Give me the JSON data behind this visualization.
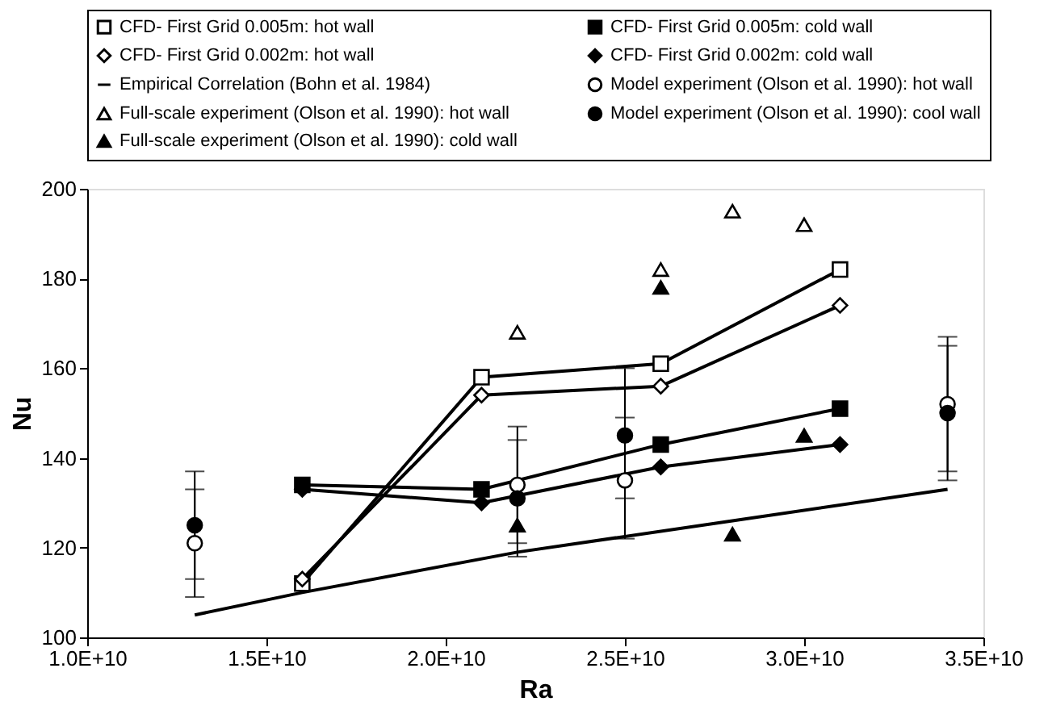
{
  "chart_data": {
    "type": "line",
    "xlabel": "Ra",
    "ylabel": "Nu",
    "xlim": [
      10000000000.0,
      35000000000.0
    ],
    "ylim": [
      100,
      200
    ],
    "xticks": [
      {
        "value": 10000000000.0,
        "label": "1.0E+10"
      },
      {
        "value": 15000000000.0,
        "label": "1.5E+10"
      },
      {
        "value": 20000000000.0,
        "label": "2.0E+10"
      },
      {
        "value": 25000000000.0,
        "label": "2.5E+10"
      },
      {
        "value": 30000000000.0,
        "label": "3.0E+10"
      },
      {
        "value": 35000000000.0,
        "label": "3.5E+10"
      }
    ],
    "yticks": [
      100,
      120,
      140,
      160,
      180,
      200
    ],
    "grid": false,
    "legend": "top",
    "series": [
      {
        "name": "CFD- First Grid 0.005m: hot wall",
        "marker": "square",
        "line_style": "solid",
        "color": "#ffffff",
        "x": [
          16000000000.0,
          21000000000.0,
          26000000000.0,
          31000000000.0
        ],
        "values": [
          112,
          158,
          161,
          182
        ]
      },
      {
        "name": "CFD- First Grid 0.005m: cold wall",
        "marker": "square",
        "line_style": "solid",
        "color": "#000000",
        "x": [
          16000000000.0,
          21000000000.0,
          26000000000.0,
          31000000000.0
        ],
        "values": [
          134,
          133,
          143,
          151
        ]
      },
      {
        "name": "CFD- First Grid 0.002m: hot wall",
        "marker": "diamond",
        "line_style": "solid",
        "color": "#ffffff",
        "x": [
          16000000000.0,
          21000000000.0,
          26000000000.0,
          31000000000.0
        ],
        "values": [
          113,
          154,
          156,
          174
        ]
      },
      {
        "name": "CFD- First Grid 0.002m: cold wall",
        "marker": "diamond",
        "line_style": "solid",
        "color": "#000000",
        "x": [
          16000000000.0,
          21000000000.0,
          26000000000.0,
          31000000000.0
        ],
        "values": [
          133,
          130,
          138,
          143
        ]
      },
      {
        "name": "Empirical Correlation (Bohn et al. 1984)",
        "marker": "none",
        "line_style": "solid",
        "color": "#000000",
        "x": [
          13000000000.0,
          16000000000.0,
          22000000000.0,
          28000000000.0,
          34000000000.0
        ],
        "values": [
          105,
          110,
          119,
          126,
          133
        ]
      },
      {
        "name": "Model experiment (Olson et al. 1990): hot wall",
        "type": "scatter",
        "marker": "circle",
        "color": "#ffffff",
        "x": [
          13000000000.0,
          22000000000.0,
          25000000000.0,
          34000000000.0
        ],
        "values": [
          121,
          134,
          135,
          152
        ],
        "errors": [
          [
            113,
            133
          ],
          [
            121,
            147
          ],
          [
            122,
            160
          ],
          [
            137,
            167
          ]
        ]
      },
      {
        "name": "Full-scale experiment (Olson et al. 1990): hot wall",
        "type": "scatter",
        "marker": "triangle",
        "color": "#ffffff",
        "x": [
          22000000000.0,
          26000000000.0,
          28000000000.0,
          30000000000.0
        ],
        "values": [
          168,
          182,
          195,
          192
        ]
      },
      {
        "name": "Model experiment (Olson et al. 1990): cool wall",
        "type": "scatter",
        "marker": "circle",
        "color": "#000000",
        "x": [
          13000000000.0,
          22000000000.0,
          25000000000.0,
          34000000000.0
        ],
        "values": [
          125,
          131,
          145,
          150
        ],
        "errors": [
          [
            109,
            137
          ],
          [
            118,
            144
          ],
          [
            131,
            149
          ],
          [
            135,
            165
          ]
        ]
      },
      {
        "name": "Full-scale experiment (Olson et al. 1990): cold wall",
        "type": "scatter",
        "marker": "triangle",
        "color": "#000000",
        "x": [
          22000000000.0,
          26000000000.0,
          28000000000.0,
          30000000000.0
        ],
        "values": [
          125,
          178,
          123,
          145
        ]
      }
    ]
  }
}
